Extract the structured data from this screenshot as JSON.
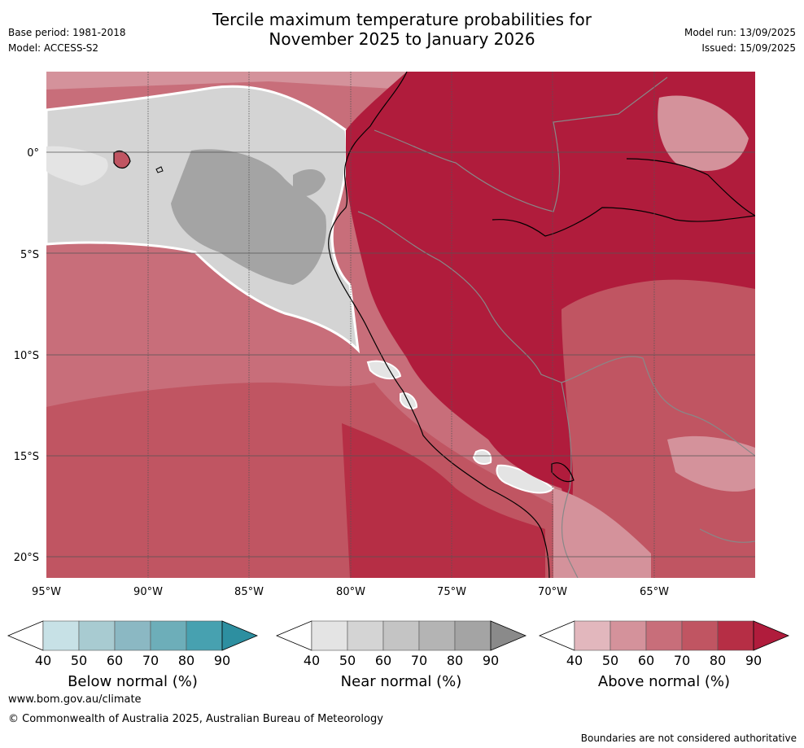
{
  "title_line1": "Tercile maximum temperature probabilities for",
  "title_line2": "November 2025 to January 2026",
  "base_period": "Base period: 1981-2018",
  "model": "Model: ACCESS-S2",
  "model_run": "Model run: 13/09/2025",
  "issued": "Issued: 15/09/2025",
  "map": {
    "latitudes": [
      "0°",
      "5°S",
      "10°S",
      "15°S",
      "20°S"
    ],
    "longitudes": [
      "95°W",
      "90°W",
      "85°W",
      "80°W",
      "75°W",
      "70°W",
      "65°W"
    ]
  },
  "colorbars": [
    {
      "label": "Below normal (%)",
      "ticks": [
        "40",
        "50",
        "60",
        "70",
        "80",
        "90"
      ],
      "colors": [
        "#ffffff",
        "#c7e1e6",
        "#a8cbd1",
        "#8bb8c3",
        "#6daeb9",
        "#47a1b0",
        "#2d8fa0"
      ]
    },
    {
      "label": "Near normal (%)",
      "ticks": [
        "40",
        "50",
        "60",
        "70",
        "80",
        "90"
      ],
      "colors": [
        "#ffffff",
        "#e4e4e4",
        "#d4d4d4",
        "#c4c4c4",
        "#b4b4b4",
        "#a4a4a4",
        "#8a8a8a"
      ]
    },
    {
      "label": "Above normal (%)",
      "ticks": [
        "40",
        "50",
        "60",
        "70",
        "80",
        "90"
      ],
      "colors": [
        "#ffffff",
        "#e2b7bd",
        "#d4929b",
        "#c86e7a",
        "#c05562",
        "#b62e45",
        "#b01c3c"
      ]
    }
  ],
  "footer": {
    "url": "www.bom.gov.au/climate",
    "copyright": "© Commonwealth of Australia 2025, Australian Bureau of Meteorology",
    "note": "Boundaries are not considered authoritative"
  }
}
